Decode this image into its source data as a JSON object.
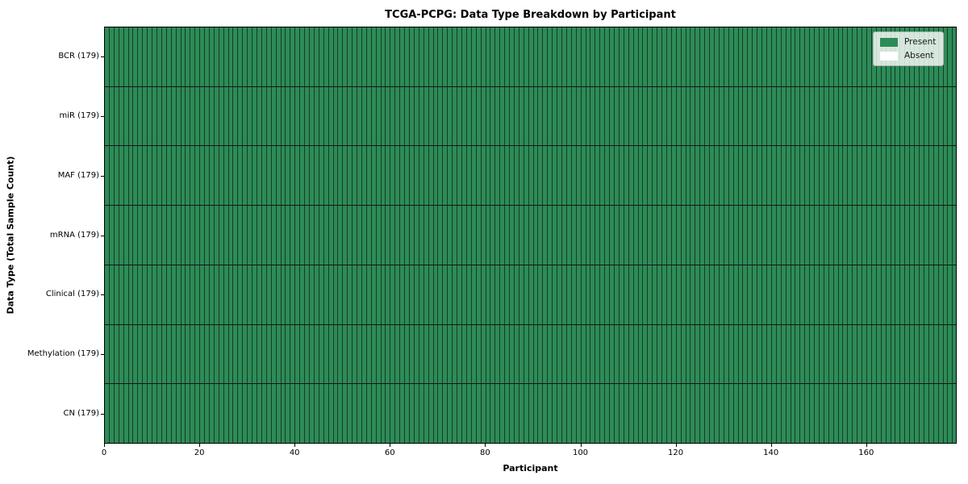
{
  "title": "TCGA-PCPG: Data Type Breakdown by Participant",
  "axes": {
    "xlabel": "Participant",
    "ylabel": "Data Type (Total Sample Count)",
    "x_ticks": [
      0,
      20,
      40,
      60,
      80,
      100,
      120,
      140,
      160
    ],
    "x_range": [
      0,
      179
    ]
  },
  "legend": {
    "position": "upper-right",
    "items": [
      {
        "label": "Present",
        "color": "#2e8b57"
      },
      {
        "label": "Absent",
        "color": "#ffffff"
      }
    ]
  },
  "chart_data": {
    "type": "heatmap",
    "title": "TCGA-PCPG: Data Type Breakdown by Participant",
    "xlabel": "Participant",
    "ylabel": "Data Type (Total Sample Count)",
    "categories": [
      "BCR (179)",
      "miR (179)",
      "MAF (179)",
      "mRNA (179)",
      "Clinical (179)",
      "Methylation (179)",
      "CN (179)"
    ],
    "n_participants": 179,
    "present_counts": [
      179,
      179,
      179,
      179,
      179,
      179,
      179
    ],
    "xlim": [
      0,
      179
    ],
    "x_tick_labels": [
      "0",
      "20",
      "40",
      "60",
      "80",
      "100",
      "120",
      "140",
      "160"
    ],
    "grid": false,
    "legend_position": "upper right",
    "colors": {
      "present": "#2e8b57",
      "absent": "#ffffff",
      "cell_edge": "rgba(0,0,0,0.55)"
    }
  }
}
